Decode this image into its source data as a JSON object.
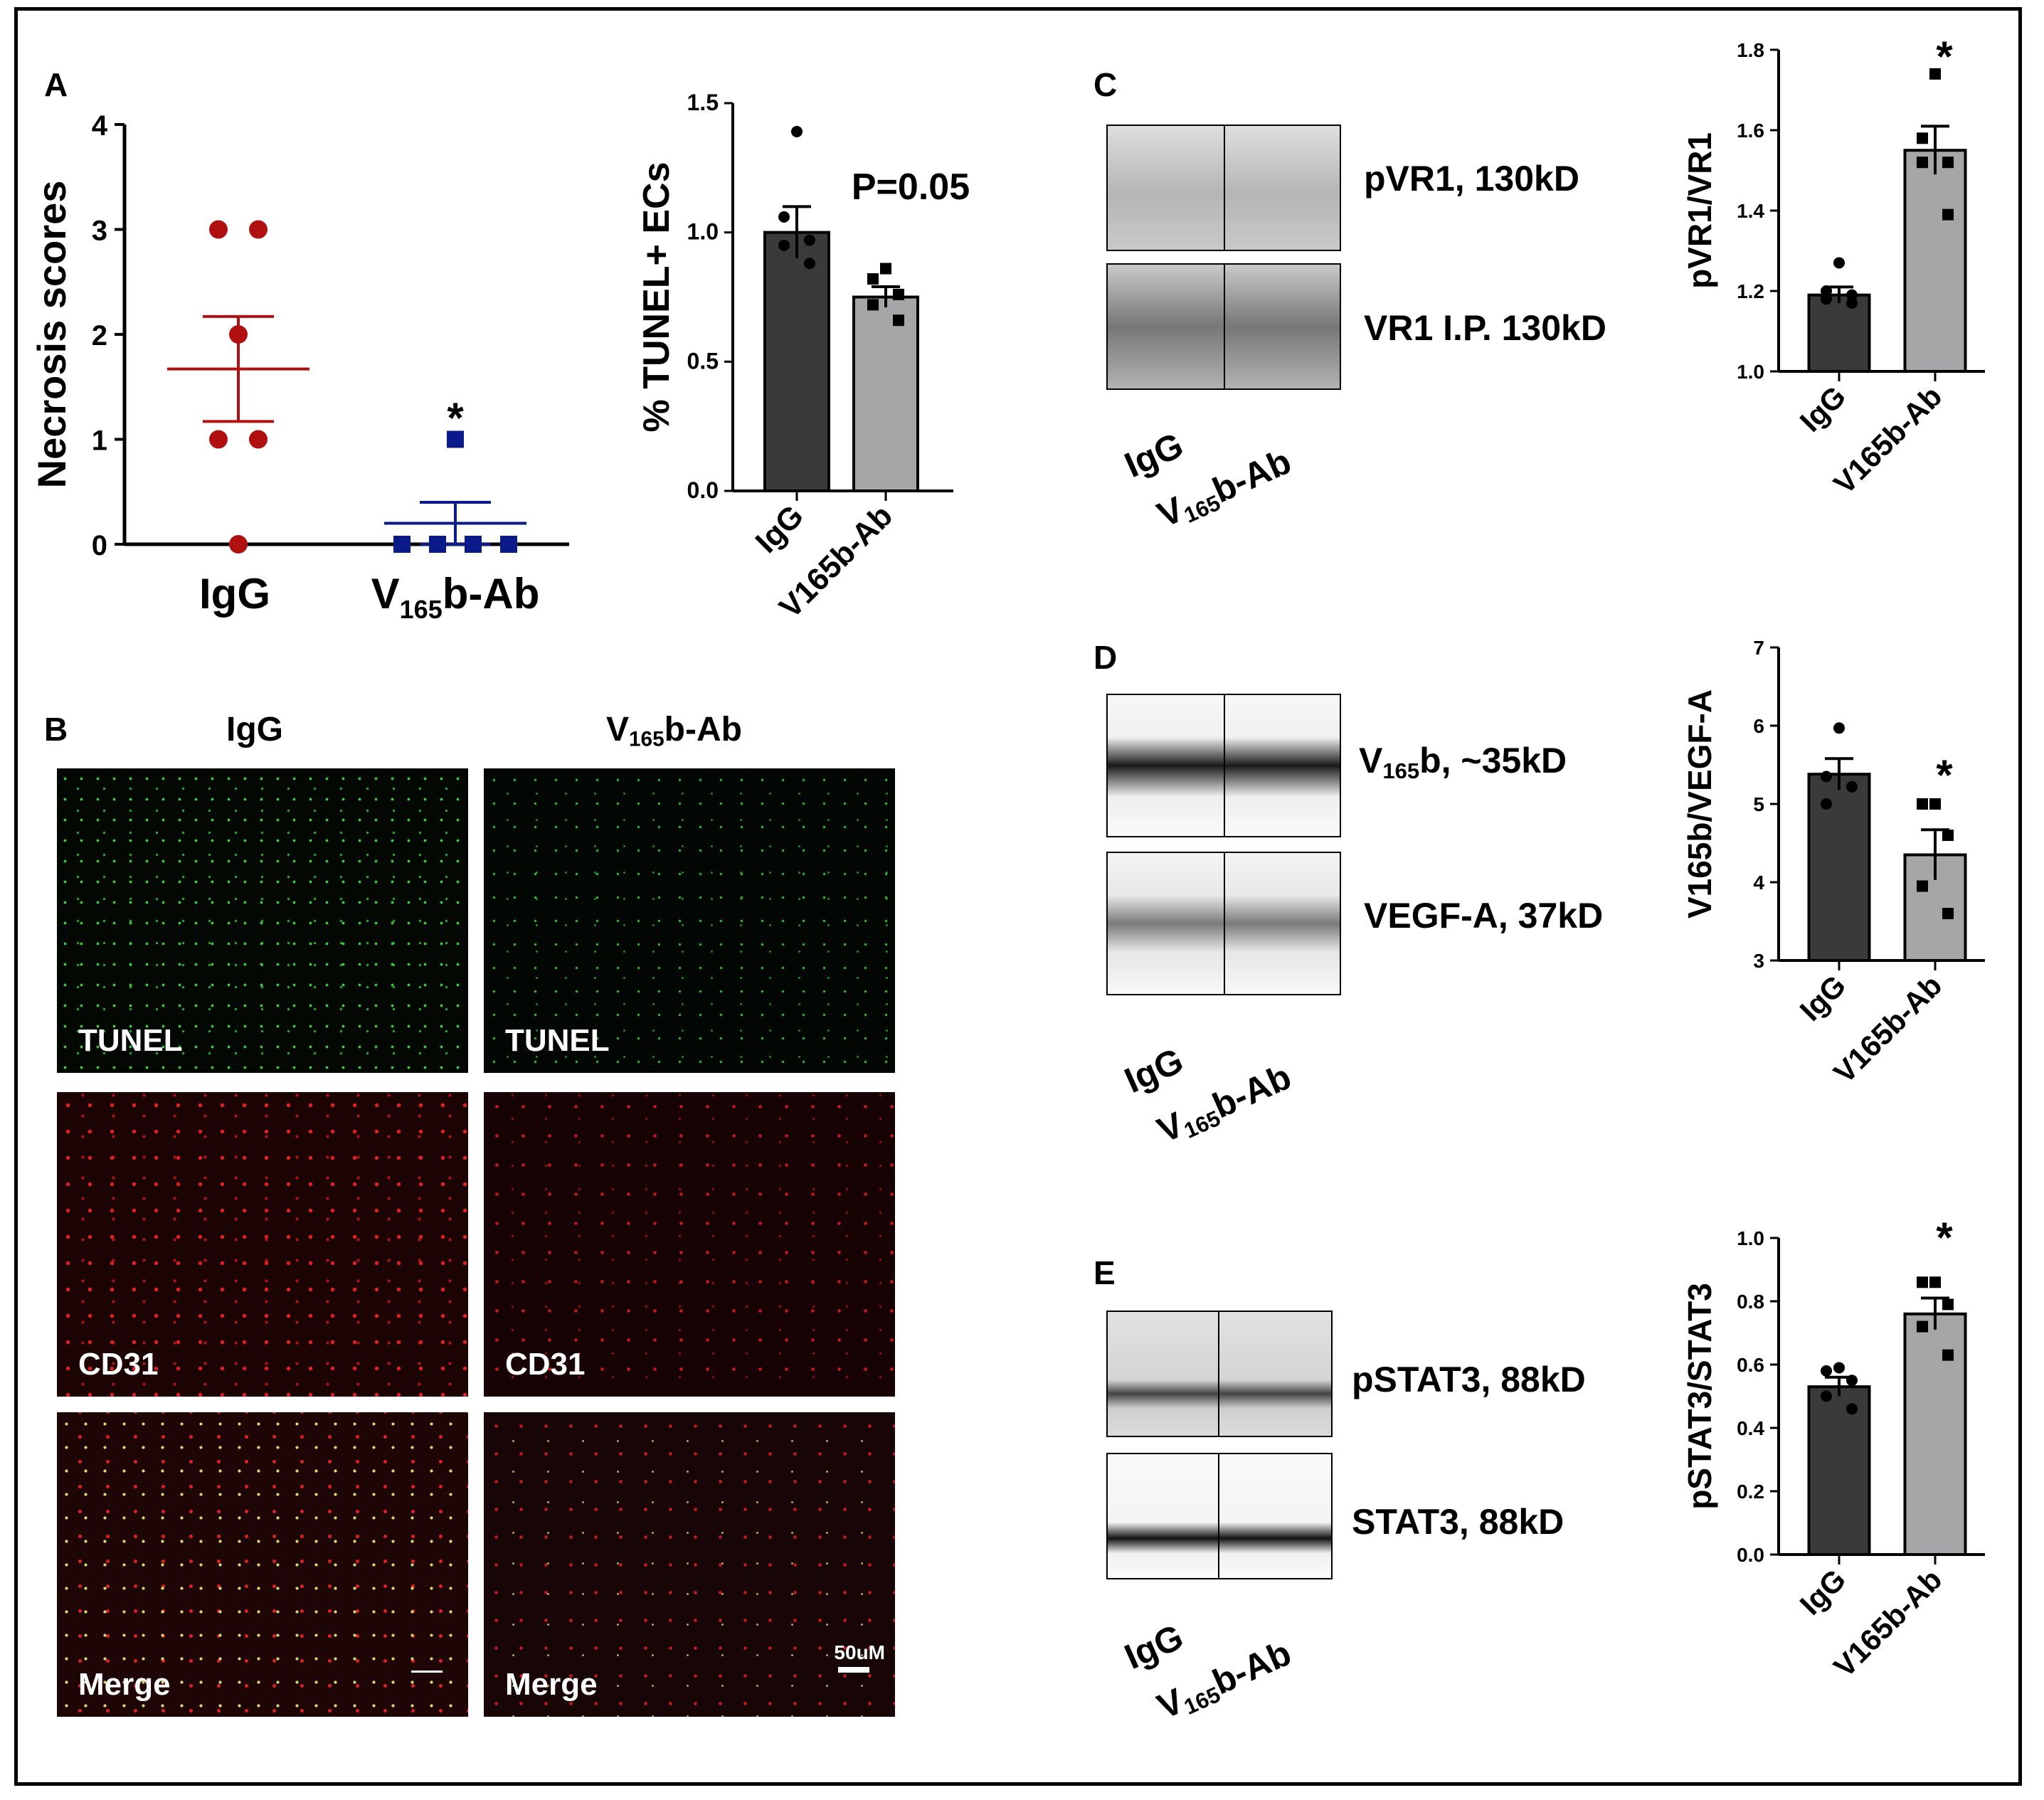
{
  "panels": {
    "A": "A",
    "B": "B",
    "C": "C",
    "D": "D",
    "E": "E"
  },
  "panel_b": {
    "col_igg": "IgG",
    "col_v165b_main": "V",
    "col_v165b_sub": "165",
    "col_v165b_tail": "b-Ab",
    "row_labels": [
      "TUNEL",
      "CD31",
      "Merge"
    ],
    "scale_bar": "50uM"
  },
  "blots": {
    "C": {
      "top": "pVR1, 130kD",
      "bottom": "VR1 I.P. 130kD"
    },
    "D": {
      "top_main": "V",
      "top_sub": "165",
      "top_tail": "b, ~35kD",
      "bottom": "VEGF-A, 37kD"
    },
    "E": {
      "top": "pSTAT3, 88kD",
      "bottom": "STAT3, 88kD"
    },
    "lane_igg": "IgG",
    "lane_ab_main": "V",
    "lane_ab_sub": "165",
    "lane_ab_tail": "b-Ab"
  },
  "colors": {
    "igg_dot": "#b01010",
    "ab_dot": "#0a1a8a",
    "dark_bar": "#3a3a3a",
    "light_bar": "#a6a6a8"
  },
  "chart_data": [
    {
      "id": "necrosis",
      "type": "scatter",
      "ylabel": "Necrosis scores",
      "categories": [
        "IgG",
        "V165b-Ab"
      ],
      "category_labels": [
        {
          "main": "IgG",
          "sub": "",
          "tail": ""
        },
        {
          "main": "V",
          "sub": "165",
          "tail": "b-Ab"
        }
      ],
      "ylim": [
        0,
        4
      ],
      "yticks": [
        0,
        1,
        2,
        3,
        4
      ],
      "series": [
        {
          "points": [
            3,
            3,
            2,
            1,
            1,
            0
          ],
          "mean": 1.67,
          "sem_low": 1.17,
          "sem_high": 2.17
        },
        {
          "points": [
            1,
            0,
            0,
            0,
            0
          ],
          "mean": 0.2,
          "sem_low": 0,
          "sem_high": 0.4
        }
      ],
      "annotation": "*"
    },
    {
      "id": "tunel",
      "type": "bar",
      "ylabel": "% TUNEL+ ECs",
      "categories": [
        "IgG",
        "V165b-Ab"
      ],
      "ylim": [
        0,
        1.5
      ],
      "yticks": [
        "0.0",
        "0.5",
        "1.0",
        "1.5"
      ],
      "values": [
        1.0,
        0.75
      ],
      "sem": [
        0.1,
        0.04
      ],
      "points": [
        [
          1.39,
          1.06,
          0.97,
          0.95,
          0.88
        ],
        [
          0.86,
          0.82,
          0.76,
          0.72,
          0.66
        ]
      ],
      "annotation": "P=0.05"
    },
    {
      "id": "pvr1",
      "type": "bar",
      "ylabel": "pVR1/VR1",
      "categories": [
        "IgG",
        "V165b-Ab"
      ],
      "ylim": [
        1.0,
        1.8
      ],
      "yticks": [
        "1.0",
        "1.2",
        "1.4",
        "1.6",
        "1.8"
      ],
      "values": [
        1.19,
        1.55
      ],
      "sem": [
        0.02,
        0.06
      ],
      "points": [
        [
          1.27,
          1.2,
          1.19,
          1.18,
          1.17
        ],
        [
          1.74,
          1.58,
          1.52,
          1.52,
          1.39
        ]
      ],
      "annotation": "*"
    },
    {
      "id": "v165b",
      "type": "bar",
      "ylabel": "V165b/VEGF-A",
      "categories": [
        "IgG",
        "V165b-Ab"
      ],
      "ylim": [
        3,
        7
      ],
      "yticks": [
        "3",
        "4",
        "5",
        "6",
        "7"
      ],
      "values": [
        5.38,
        4.35
      ],
      "sem": [
        0.2,
        0.32
      ],
      "points": [
        [
          5.97,
          5.35,
          5.22,
          5.0
        ],
        [
          5.0,
          5.0,
          4.6,
          3.95,
          3.6
        ]
      ],
      "annotation": "*"
    },
    {
      "id": "pstat3",
      "type": "bar",
      "ylabel": "pSTAT3/STAT3",
      "categories": [
        "IgG",
        "V165b-Ab"
      ],
      "ylim": [
        0,
        1.0
      ],
      "yticks": [
        "0.0",
        "0.2",
        "0.4",
        "0.6",
        "0.8",
        "1.0"
      ],
      "values": [
        0.53,
        0.76
      ],
      "sem": [
        0.03,
        0.05
      ],
      "points": [
        [
          0.59,
          0.58,
          0.55,
          0.5,
          0.46
        ],
        [
          0.86,
          0.86,
          0.79,
          0.72,
          0.63
        ]
      ],
      "annotation": "*"
    }
  ]
}
